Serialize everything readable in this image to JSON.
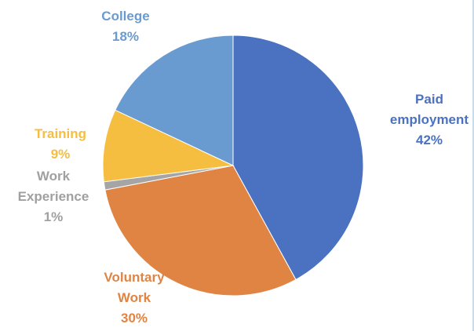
{
  "chart_data": {
    "type": "pie",
    "title": "",
    "start_angle_deg": 0,
    "direction": "clockwise",
    "slices": [
      {
        "name": "Paid employment",
        "label_lines": [
          "Paid",
          "employment",
          "42%"
        ],
        "value": 42,
        "color": "#4a72c0"
      },
      {
        "name": "Voluntary Work",
        "label_lines": [
          "Voluntary",
          "Work",
          "30%"
        ],
        "value": 30,
        "color": "#e08444"
      },
      {
        "name": "Work Experience",
        "label_lines": [
          "Work",
          "Experience",
          "1%"
        ],
        "value": 1,
        "color": "#a5a5a5"
      },
      {
        "name": "Training",
        "label_lines": [
          "Training",
          "9%"
        ],
        "value": 9,
        "color": "#f5be41"
      },
      {
        "name": "College",
        "label_lines": [
          "College",
          "18%"
        ],
        "value": 18,
        "color": "#6a9bd0"
      }
    ],
    "legend": "none"
  }
}
